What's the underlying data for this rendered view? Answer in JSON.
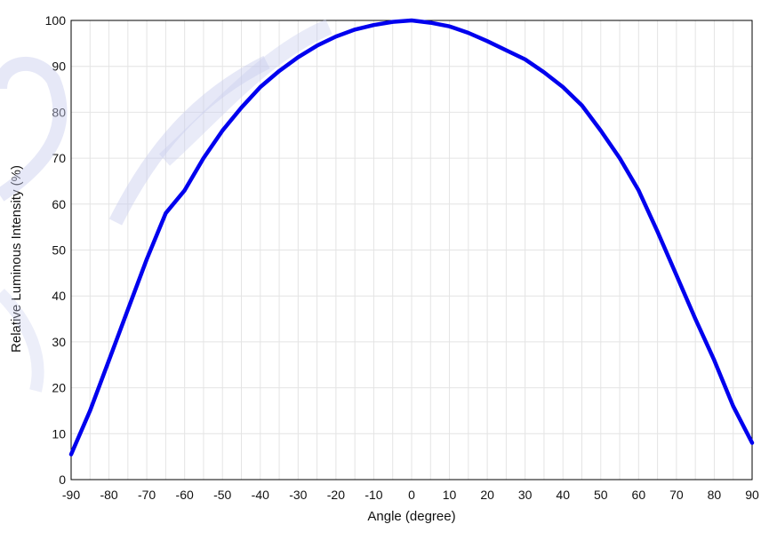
{
  "chart_data": {
    "type": "line",
    "title": "",
    "xlabel": "Angle (degree)",
    "ylabel": "Relative Luminous Intensity (%)",
    "xlim": [
      -90,
      90
    ],
    "ylim": [
      0,
      100
    ],
    "xticks": [
      -90,
      -80,
      -70,
      -60,
      -50,
      -40,
      -30,
      -20,
      -10,
      0,
      10,
      20,
      30,
      40,
      50,
      60,
      70,
      80,
      90
    ],
    "yticks": [
      0,
      10,
      20,
      30,
      40,
      50,
      60,
      70,
      80,
      90,
      100
    ],
    "grid": true,
    "legend": false,
    "series": [
      {
        "color": "#0000ee",
        "x": [
          -90,
          -85,
          -80,
          -75,
          -70,
          -65,
          -60,
          -55,
          -50,
          -45,
          -40,
          -35,
          -30,
          -25,
          -20,
          -15,
          -10,
          -5,
          0,
          5,
          10,
          15,
          20,
          25,
          30,
          35,
          40,
          45,
          50,
          55,
          60,
          65,
          70,
          75,
          80,
          85,
          90
        ],
        "y": [
          5.5,
          15,
          26,
          37,
          48,
          58,
          63,
          70,
          76,
          81,
          85.5,
          89,
          92,
          94.5,
          96.5,
          98,
          99,
          99.7,
          100,
          99.5,
          98.7,
          97.3,
          95.5,
          93.5,
          91.5,
          88.7,
          85.5,
          81.5,
          76,
          70,
          63,
          54,
          44.5,
          35,
          26,
          16,
          8
        ]
      }
    ]
  }
}
